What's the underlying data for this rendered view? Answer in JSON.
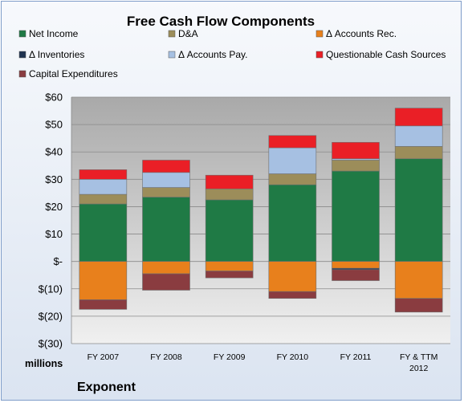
{
  "chart_data": {
    "type": "bar",
    "stacked": true,
    "title": "Free Cash Flow Components",
    "categories": [
      "FY 2007",
      "FY 2008",
      "FY 2009",
      "FY 2010",
      "FY 2011",
      "FY & TTM\n2012"
    ],
    "ylim": [
      -30,
      60
    ],
    "yticks": [
      "$60",
      "$50",
      "$40",
      "$30",
      "$20",
      "$10",
      "$-",
      "$(10)",
      "$(20)",
      "$(30)"
    ],
    "grid": true,
    "legend_position": "top",
    "y_unit_label": "millions",
    "series": [
      {
        "name": "Net Income",
        "color": "#1f7a45",
        "values": [
          21,
          23.5,
          22.5,
          28,
          33,
          37.5
        ]
      },
      {
        "name": "D&A",
        "color": "#9c8d5a",
        "values": [
          3.5,
          3.5,
          4,
          4,
          4,
          4.5
        ]
      },
      {
        "name": "Δ Accounts Rec.",
        "color": "#e8801c",
        "values": [
          -14,
          -4.5,
          -3.5,
          -11,
          -2.5,
          -13.5
        ]
      },
      {
        "name": "Δ Inventories",
        "color": "#1f3350",
        "values": [
          0,
          0,
          0,
          0,
          -0.5,
          0
        ]
      },
      {
        "name": "Δ Accounts Pay.",
        "color": "#a6c0e2",
        "values": [
          5.5,
          5.5,
          0,
          9.5,
          0.5,
          7.5
        ]
      },
      {
        "name": "Questionable Cash Sources",
        "color": "#ea1f26",
        "values": [
          3.5,
          4.5,
          5,
          4.5,
          6,
          6.5
        ]
      },
      {
        "name": "Capital Expenditures",
        "color": "#8a3c40",
        "values": [
          -3.5,
          -6,
          -2.5,
          -2.5,
          -4,
          -5
        ]
      }
    ]
  },
  "brand": "Exponent"
}
